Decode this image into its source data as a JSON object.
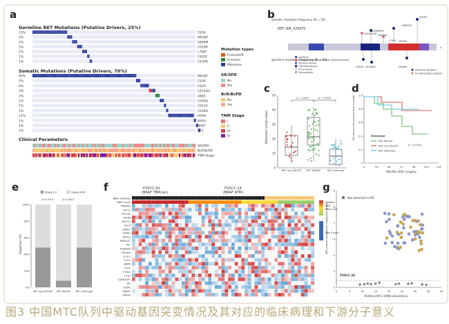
{
  "panels": [
    "a",
    "b",
    "c",
    "d",
    "e",
    "f",
    "g"
  ],
  "colors": {
    "mutation_blue": "#3f5fbf",
    "inframe": "#2b8a3e",
    "missense": "#2e3f9c",
    "stage_i": "#e57373",
    "stage_ii": "#f7c873",
    "stage_iii": "#d04050",
    "stage_iv": "#7b1fa2",
    "no": "#9bd2c7",
    "yes": "#f08a8a",
    "mid_violet": "#8e7ec8",
    "caption": "#b7a87a",
    "stage_ivbar": "#dddddd",
    "stage_iibar": "#999999",
    "red_line": "#d9534f",
    "green_line": "#5cb85c",
    "blue_line": "#5bc0de"
  },
  "panel_a": {
    "germline_title": "Germline RET Mutations (Putative Drivers, 25%)",
    "germline_rows": [
      {
        "pct": "15%",
        "gene": "C634"
      },
      {
        "pct": "2%",
        "gene": "M918T"
      },
      {
        "pct": "2%",
        "gene": "V804M"
      },
      {
        "pct": "2%",
        "gene": "C618R"
      },
      {
        "pct": "2%",
        "gene": "L790F"
      },
      {
        "pct": "1%",
        "gene": "C620F"
      },
      {
        "pct": "1%",
        "gene": "C630R"
      }
    ],
    "somatic_title": "Somatic Mutations (Putative Drivers, 70%)",
    "somatic_rows": [
      {
        "pct": "60%",
        "gene": "M918T"
      },
      {
        "pct": "2%",
        "gene": "C634"
      },
      {
        "pct": "4%",
        "gene": "C620"
      },
      {
        "pct": "3%",
        "gene": "L633del"
      },
      {
        "pct": "2%",
        "gene": "A883"
      },
      {
        "pct": "2%",
        "gene": "C630G"
      },
      {
        "pct": "1%",
        "gene": "C611S"
      },
      {
        "pct": "1%",
        "gene": "C618G"
      },
      {
        "pct": "12%",
        "gene": "HRAS"
      },
      {
        "pct": "1%",
        "gene": "KRAS"
      },
      {
        "pct": "1%",
        "gene": "BRAF"
      },
      {
        "pct": "1%",
        "gene": "NF1"
      }
    ],
    "clinical_title": "Clinical Parameters",
    "clinical_rows": [
      "SR/SPD",
      "BcR/BcPD",
      "TNM Stage"
    ],
    "mutation_types_title": "Mutation types",
    "mutation_types": [
      "Frameshift",
      "In-frame",
      "Missense"
    ],
    "srspd_title": "SR/SPD",
    "srspd": [
      "No",
      "Yes"
    ],
    "bcr_title": "BcR/BcPD",
    "bcr": [
      "No",
      "Yes"
    ],
    "tnm_title": "TNM Stage",
    "tnm": [
      "I",
      "II",
      "III",
      "IV"
    ]
  },
  "panel_b": {
    "label": "RET: NM_020975",
    "somatic_axis": "somatic mutation frequency (N = 55)",
    "germline_axis": "germline mutation frequency (N = 25)",
    "top_mutations": [
      "C620F/G/R",
      "C634R/W/Y",
      "L633del",
      "A883F/V",
      "M918T",
      "L790F",
      "V804M"
    ],
    "bottom_mutations": [
      "C618S",
      "C634R/G",
      "V804M"
    ],
    "domain_legend": [
      "Cadherin",
      "Catalytic domain of Protein Tyrosine Kinase",
      "Tyrosine Kinase",
      "Transmembrane",
      "Intracellular",
      "Extracellular"
    ],
    "mutation_legend": [
      "Missense Mutation",
      "In-frame/InDel Deletion"
    ],
    "ymax": "4"
  },
  "panel_c": {
    "ylabel": "Metastatic lymph nodes",
    "groups": [
      "RET non-M918T",
      "RET M918T",
      "RET wild-type"
    ],
    "pvals": [
      "p = 0.005",
      "p = 0.002"
    ],
    "yticks": [
      "0",
      "10",
      "20",
      "30",
      "40",
      "50"
    ]
  },
  "panel_d": {
    "ylabel": "Structural recurrence-free survival",
    "xlabel": "Months after surgery",
    "xticks": [
      "0",
      "24",
      "48",
      "72",
      "96",
      "120",
      "144"
    ],
    "yticks": [
      "0",
      "0.2",
      "0.4",
      "0.6",
      "0.8",
      "1.0"
    ],
    "legend_title": "Genotype",
    "series": [
      "RET M918T",
      "RET non-M918T",
      "RET wild-type"
    ],
    "pval": "p = 0.010"
  },
  "panel_e": {
    "legend": [
      "Stage I/II",
      "Stage III/IV"
    ],
    "pvals": [
      "p=3.7e-4",
      "p=1.8e-3"
    ],
    "ylabel": "Proportion (%)",
    "yticks": [
      "0%",
      "20%",
      "40%",
      "60%",
      "80%",
      "100%"
    ],
    "groups": [
      "RET non-M918T",
      "RET M918T",
      "RET wild-type"
    ],
    "stage_iii_iv_pct": [
      52,
      92,
      52
    ]
  },
  "panel_f": {
    "group_labels": [
      "FUSCC-41",
      "FUSCC-14"
    ],
    "group_sub": [
      "(BRAF TBMcan)",
      "(BRAF ATM)"
    ],
    "genes": [
      "BRAF mutation",
      "BRAF Score",
      "TMEM43",
      "STT12",
      "STS13D",
      "EFTPB",
      "RELTL3",
      "SEC4",
      "CRDH1",
      "PTPRD",
      "PROS1",
      "PRDELS7",
      "PPL",
      "PLEKHA4",
      "PDLIM4",
      "LLGL1",
      "FOO2",
      "SMPD",
      "FFOT",
      "ETHE1",
      "CTSC",
      "CDKN2BP1",
      "BO",
      "ASPP2",
      "ANXA1",
      "HMGAI"
    ],
    "legend_top": [
      "Mutation",
      "Wild"
    ],
    "legend_mid": "BRAF score",
    "legend_bot": "Row Z score"
  },
  "panel_g": {
    "legend": "Not detected in MS",
    "annotation": "FUSCC-24",
    "xlabel": "Relative NF1 mRNA abundance",
    "ylabel": "NF1 protein abundance (log2[peak area])",
    "xticks": [
      "0",
      "5",
      "10",
      "15",
      "20",
      "25",
      "30",
      "35",
      "40"
    ],
    "yticks": [
      "3",
      "4",
      "5",
      "6",
      "7",
      "8",
      "9"
    ]
  },
  "caption": "图3 中国MTC队列中驱动基因突变情况及其对应的临床病理和下游分子意义"
}
